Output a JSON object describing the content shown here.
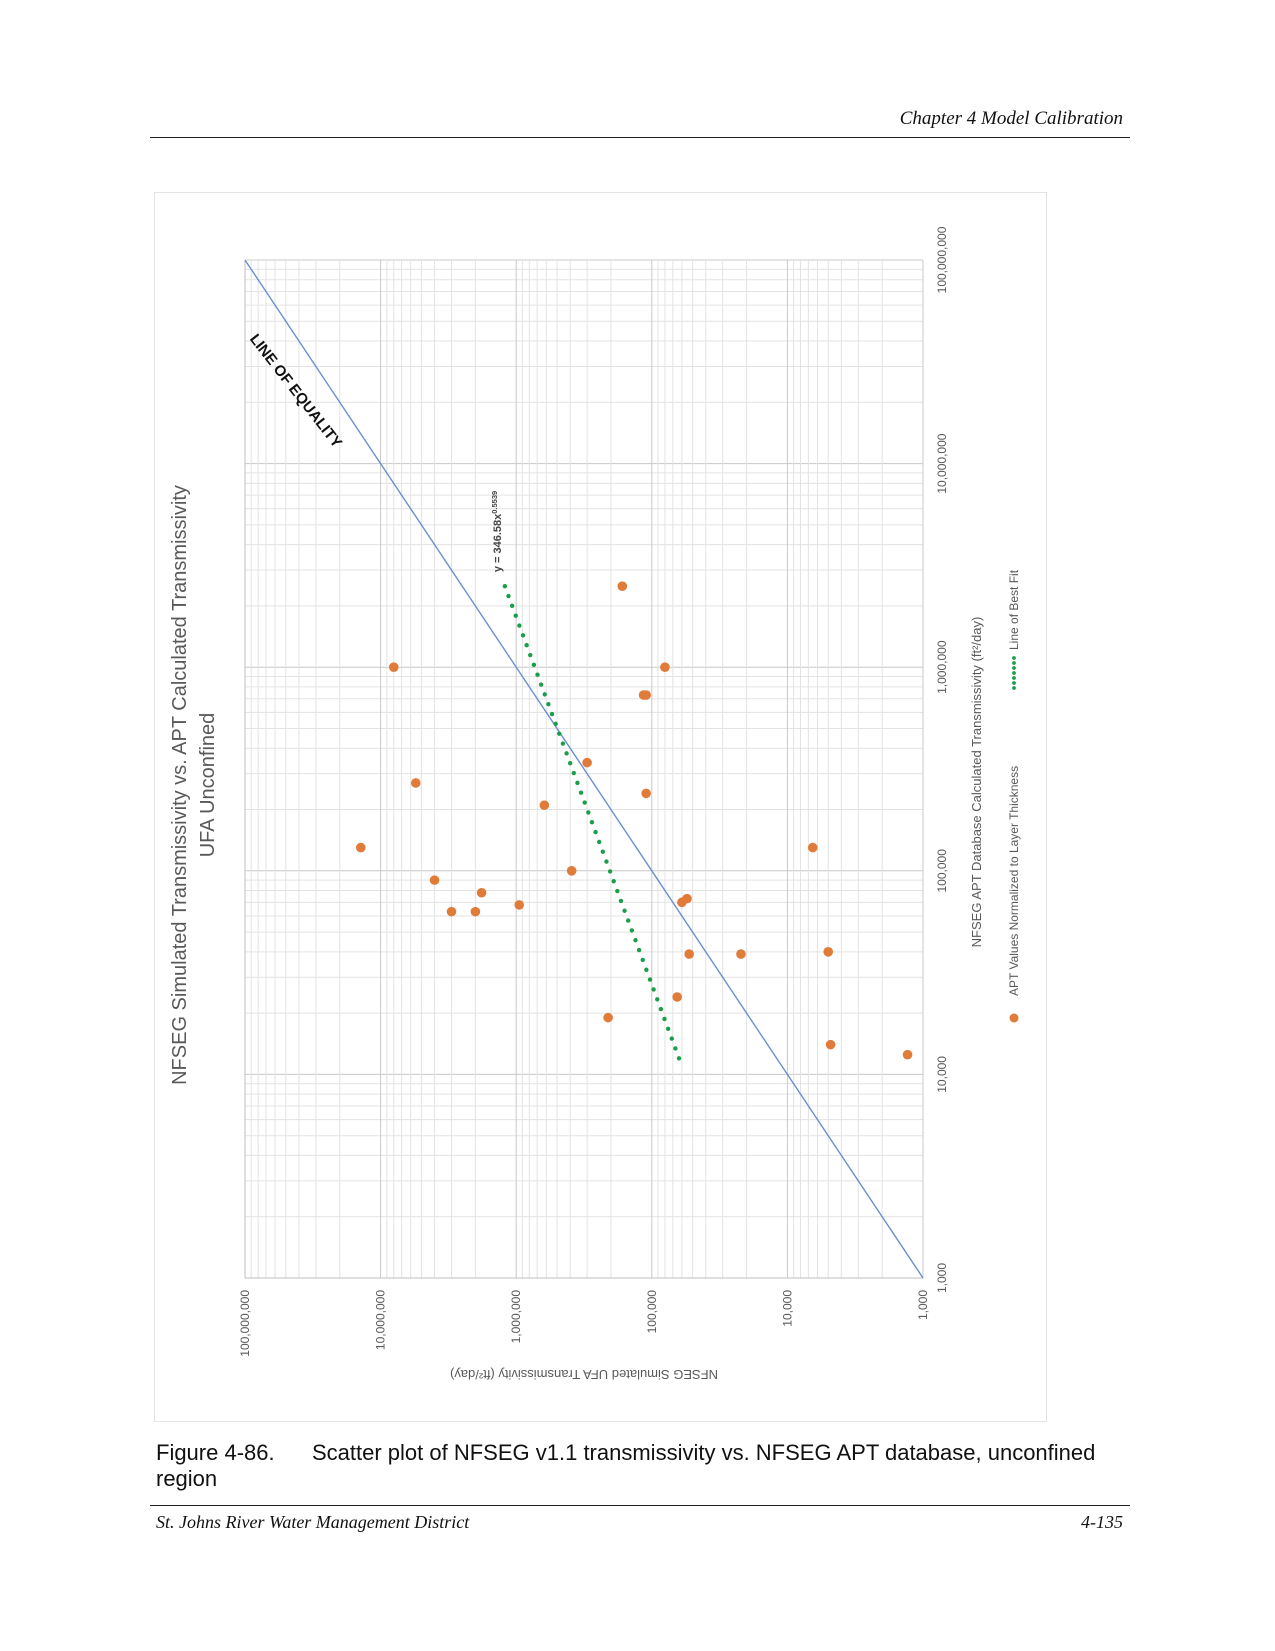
{
  "header": {
    "chapter_title": "Chapter 4 Model Calibration"
  },
  "figure": {
    "number": "Figure 4-86.",
    "caption": "Scatter plot of NFSEG v1.1 transmissivity vs. NFSEG APT database, unconfined region"
  },
  "footer": {
    "organization": "St. Johns River Water Management District",
    "page_number": "4-135"
  },
  "colors": {
    "points": "#e07b39",
    "best_fit": "#1a9e4a",
    "equality_line": "#6a8fd0",
    "grid": "#d9d9d9"
  },
  "chart_data": {
    "type": "scatter",
    "orientation": "rotated 90° counter-clockwise on page",
    "title": "NFSEG Simulated Transmissivity vs. APT Calculated Transmissivity",
    "subtitle": "UFA Unconfined",
    "xlabel": "NFSEG APT Database Calculated Transmissivity (ft²/day)",
    "ylabel": "NFSEG Simulated UFA Transmissivity (ft²/day)",
    "x_scale": "log",
    "y_scale": "log",
    "xlim": [
      1000,
      100000000
    ],
    "ylim": [
      1000,
      100000000
    ],
    "x_ticks": [
      "1,000",
      "10,000",
      "100,000",
      "1,000,000",
      "10,000,000",
      "100,000,000"
    ],
    "y_ticks": [
      "1,000",
      "10,000",
      "100,000",
      "1,000,000",
      "10,000,000",
      "100,000,000"
    ],
    "grid": true,
    "legend_position": "bottom",
    "legend": [
      "APT Values Normalized to Layer Thickness",
      "Line of Best Fit"
    ],
    "equality_label": "LINE OF EQUALITY",
    "equation": "y = 346.58x",
    "equation_exponent": "0.5539",
    "series": [
      {
        "name": "APT Values Normalized to Layer Thickness",
        "points": [
          {
            "x": 1000000,
            "y": 8000000
          },
          {
            "x": 130000,
            "y": 14000000
          },
          {
            "x": 270000,
            "y": 5500000
          },
          {
            "x": 90000,
            "y": 4000000
          },
          {
            "x": 63000,
            "y": 3000000
          },
          {
            "x": 63000,
            "y": 2000000
          },
          {
            "x": 78000,
            "y": 1800000
          },
          {
            "x": 68000,
            "y": 950000
          },
          {
            "x": 210000,
            "y": 620000
          },
          {
            "x": 100000,
            "y": 390000
          },
          {
            "x": 340000,
            "y": 300000
          },
          {
            "x": 19000,
            "y": 210000
          },
          {
            "x": 2500000,
            "y": 165000
          },
          {
            "x": 1000000,
            "y": 80000
          },
          {
            "x": 730000,
            "y": 115000
          },
          {
            "x": 730000,
            "y": 110000
          },
          {
            "x": 240000,
            "y": 110000
          },
          {
            "x": 70000,
            "y": 60000
          },
          {
            "x": 73000,
            "y": 55000
          },
          {
            "x": 39000,
            "y": 53000
          },
          {
            "x": 39000,
            "y": 22000
          },
          {
            "x": 24000,
            "y": 65000
          },
          {
            "x": 130000,
            "y": 6500
          },
          {
            "x": 40000,
            "y": 5000
          },
          {
            "x": 14000,
            "y": 4800
          },
          {
            "x": 12500,
            "y": 1300
          }
        ]
      },
      {
        "name": "Line of Best Fit",
        "formula": "y = 346.58x^0.5539",
        "x_range": [
          12000,
          2500000
        ]
      }
    ]
  }
}
